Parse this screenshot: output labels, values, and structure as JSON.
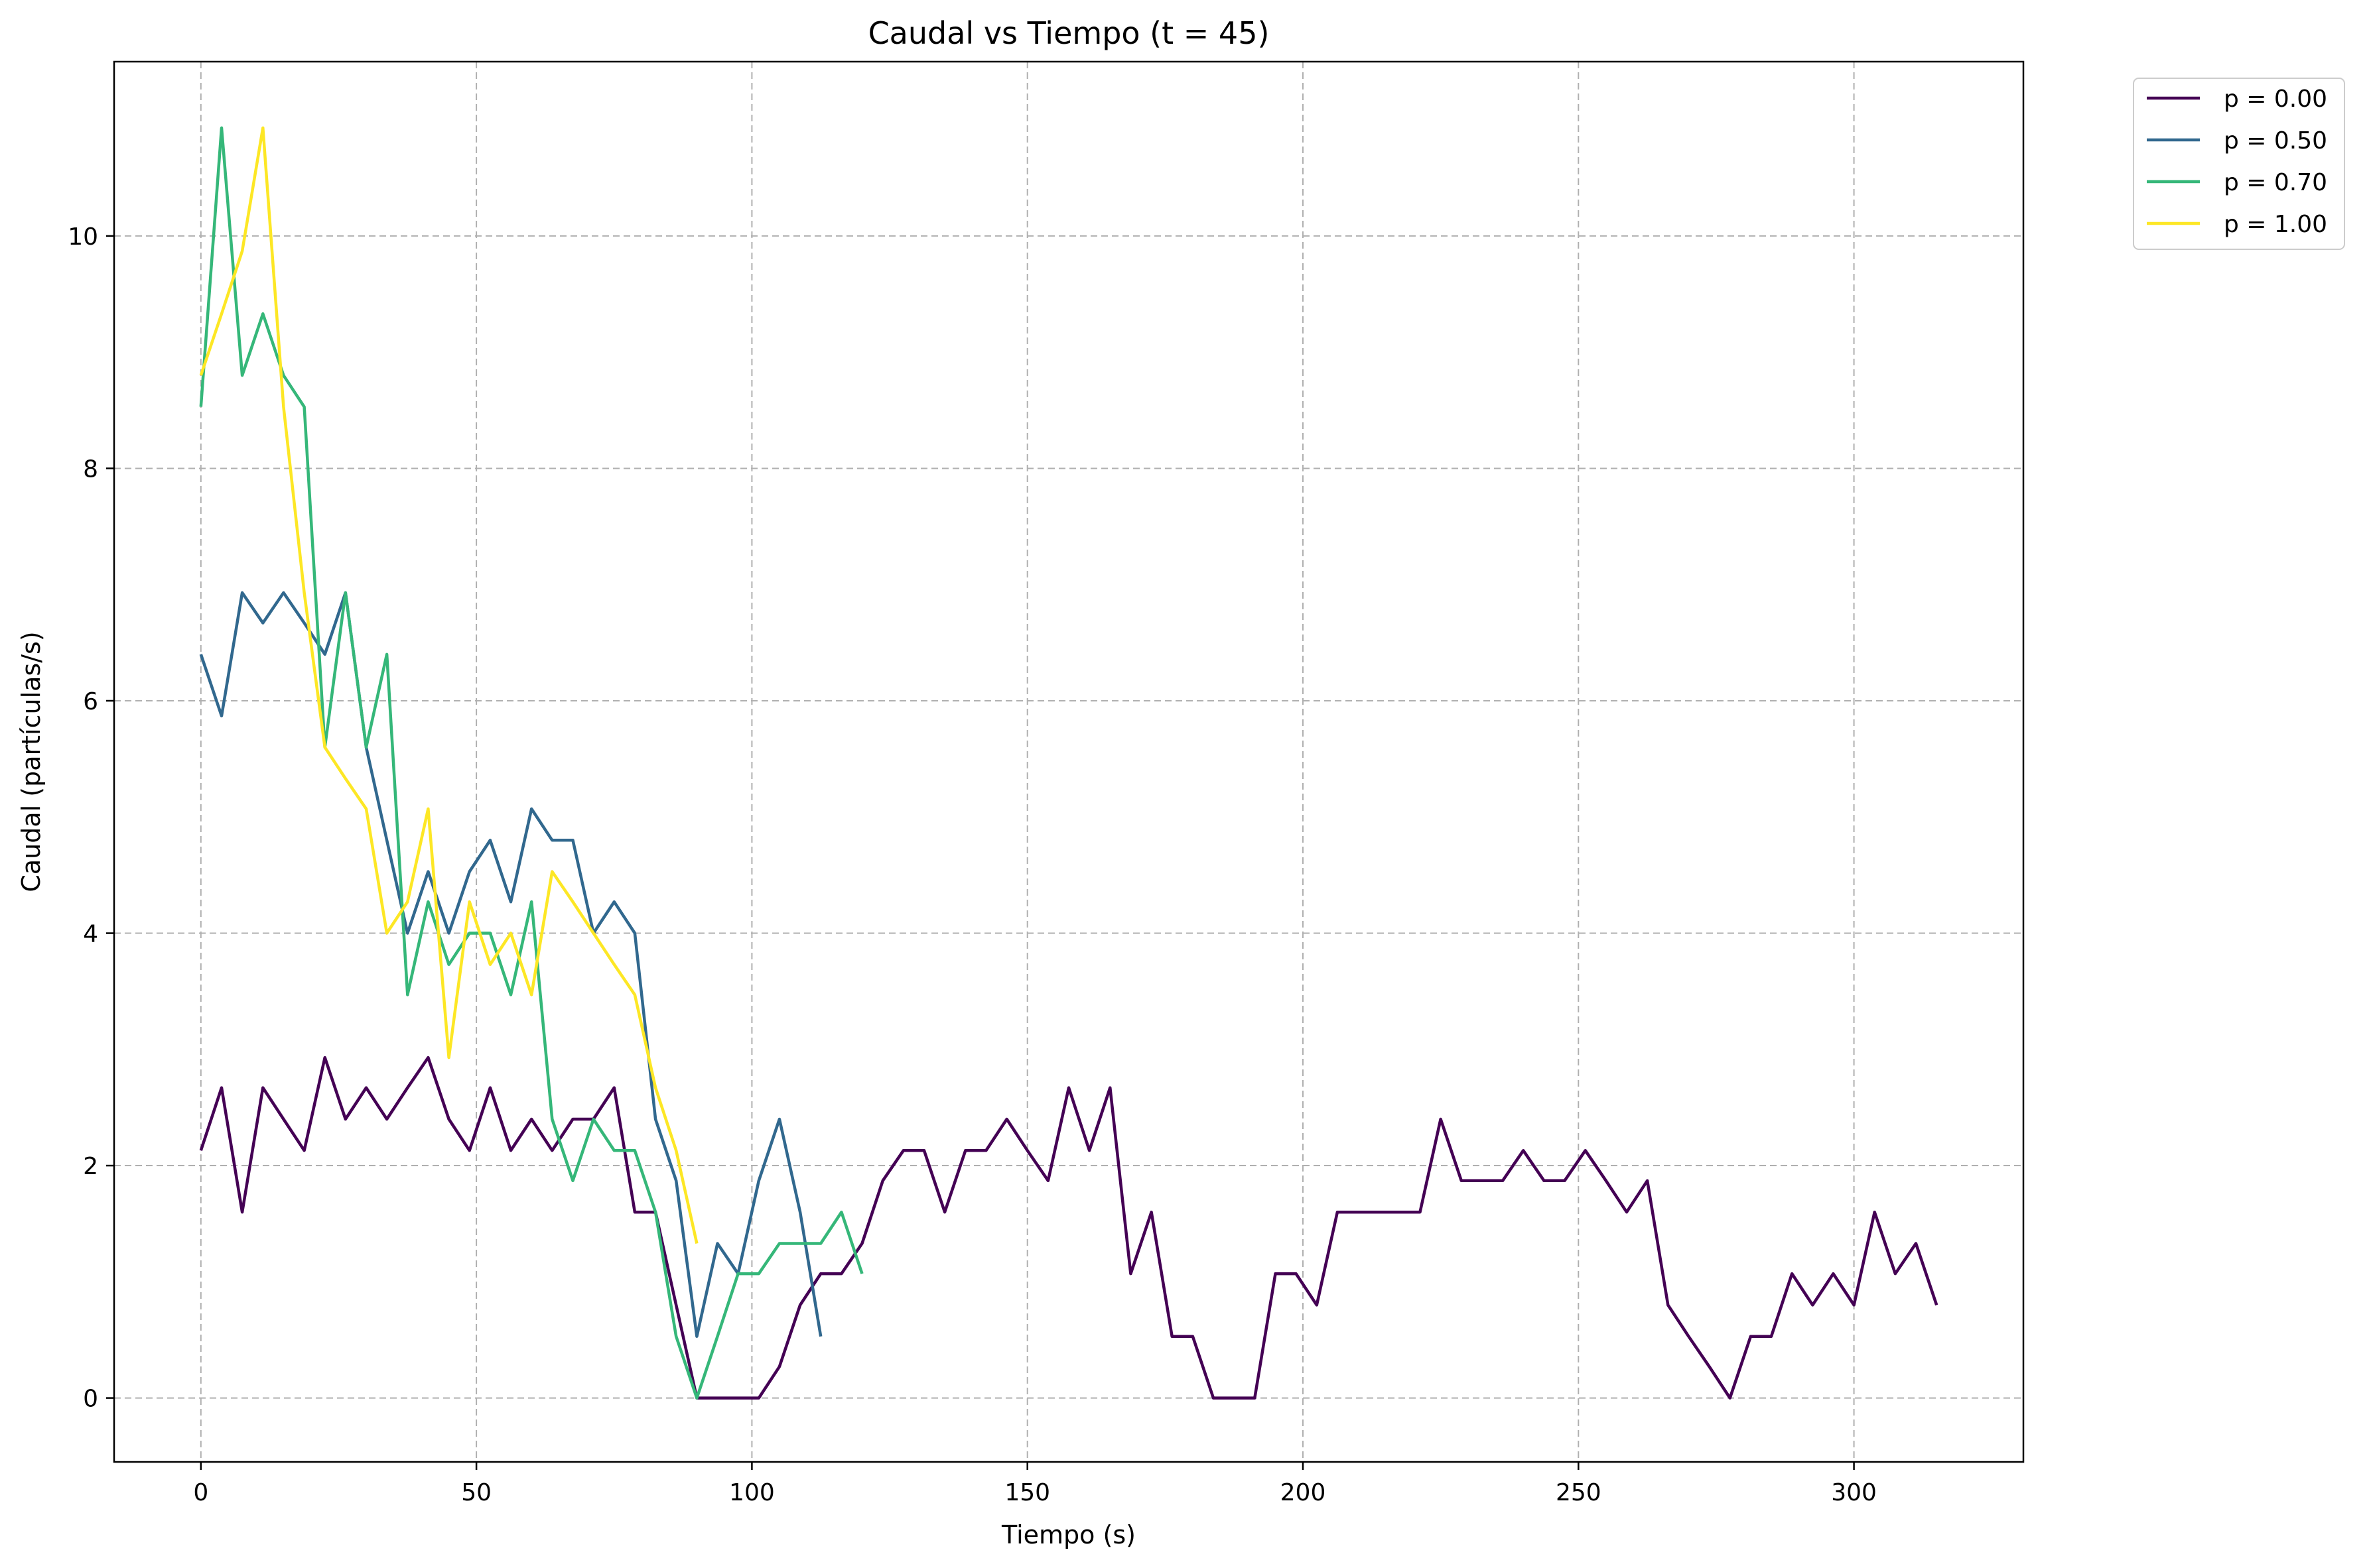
{
  "chart_data": {
    "type": "line",
    "title": "Caudal vs Tiempo (t = 45)",
    "xlabel": "Tiempo (s)",
    "ylabel": "Caudal (partículas/s)",
    "xlim": [
      -15.75,
      330.75
    ],
    "ylim": [
      -0.55,
      11.5
    ],
    "xticks": [
      0,
      50,
      100,
      150,
      200,
      250,
      300
    ],
    "yticks": [
      0,
      2,
      4,
      6,
      8,
      10
    ],
    "grid": true,
    "legend_position": "outside-top-right",
    "series": [
      {
        "name": "p = 0.00",
        "color": "#440154",
        "x": [
          0,
          3.75,
          7.5,
          11.25,
          15,
          18.75,
          22.5,
          26.25,
          30,
          33.75,
          37.5,
          41.25,
          45,
          48.75,
          52.5,
          56.25,
          60,
          63.75,
          67.5,
          71.25,
          75,
          78.75,
          82.5,
          86.25,
          90,
          93.75,
          97.5,
          101.25,
          105,
          108.75,
          112.5,
          116.25,
          120,
          123.75,
          127.5,
          131.25,
          135,
          138.75,
          142.5,
          146.25,
          150,
          153.75,
          157.5,
          161.25,
          165,
          168.75,
          172.5,
          176.25,
          180,
          183.75,
          187.5,
          191.25,
          195,
          198.75,
          202.5,
          206.25,
          210,
          213.75,
          217.5,
          221.25,
          225,
          228.75,
          232.5,
          236.25,
          240,
          243.75,
          247.5,
          251.25,
          255,
          258.75,
          262.5,
          266.25,
          270,
          273.75,
          277.5,
          281.25,
          285,
          288.75,
          292.5,
          296.25,
          300,
          303.75,
          307.5,
          311.25,
          315
        ],
        "y": [
          2.13,
          2.67,
          1.6,
          2.67,
          2.4,
          2.13,
          2.93,
          2.4,
          2.67,
          2.4,
          2.67,
          2.93,
          2.4,
          2.13,
          2.67,
          2.13,
          2.4,
          2.13,
          2.4,
          2.4,
          2.67,
          1.6,
          1.6,
          0.8,
          0.0,
          0.0,
          0.0,
          0.0,
          0.27,
          0.8,
          1.07,
          1.07,
          1.33,
          1.87,
          2.13,
          2.13,
          1.6,
          2.13,
          2.13,
          2.4,
          2.13,
          1.87,
          2.67,
          2.13,
          2.67,
          1.07,
          1.6,
          0.53,
          0.53,
          0.0,
          0.0,
          0.0,
          1.07,
          1.07,
          0.8,
          1.6,
          1.6,
          1.6,
          1.6,
          1.6,
          2.4,
          1.87,
          1.87,
          1.87,
          2.13,
          1.87,
          1.87,
          2.13,
          1.87,
          1.6,
          1.87,
          0.8,
          0.53,
          0.27,
          0.0,
          0.53,
          0.53,
          1.07,
          0.8,
          1.07,
          0.8,
          1.6,
          1.07,
          1.33,
          0.8
        ]
      },
      {
        "name": "p = 0.50",
        "color": "#31688e",
        "x": [
          0,
          3.75,
          7.5,
          11.25,
          15,
          18.75,
          22.5,
          26.25,
          30,
          33.75,
          37.5,
          41.25,
          45,
          48.75,
          52.5,
          56.25,
          60,
          63.75,
          67.5,
          71.25,
          75,
          78.75,
          82.5,
          86.25,
          90,
          93.75,
          97.5,
          101.25,
          105,
          108.75,
          112.5
        ],
        "y": [
          6.4,
          5.87,
          6.93,
          6.67,
          6.93,
          6.67,
          6.4,
          6.93,
          5.6,
          4.8,
          4.0,
          4.53,
          4.0,
          4.53,
          4.8,
          4.27,
          5.07,
          4.8,
          4.8,
          4.0,
          4.27,
          4.0,
          2.4,
          1.87,
          0.53,
          1.33,
          1.07,
          1.87,
          2.4,
          1.6,
          0.53
        ]
      },
      {
        "name": "p = 0.70",
        "color": "#35b779",
        "x": [
          0,
          3.75,
          7.5,
          11.25,
          15,
          18.75,
          22.5,
          26.25,
          30,
          33.75,
          37.5,
          41.25,
          45,
          48.75,
          52.5,
          56.25,
          60,
          63.75,
          67.5,
          71.25,
          75,
          78.75,
          82.5,
          86.25,
          90,
          93.75,
          97.5,
          101.25,
          105,
          108.75,
          112.5,
          116.25,
          120
        ],
        "y": [
          8.53,
          10.93,
          8.8,
          9.33,
          8.8,
          8.53,
          5.6,
          6.93,
          5.6,
          6.4,
          3.47,
          4.27,
          3.73,
          4.0,
          4.0,
          3.47,
          4.27,
          2.4,
          1.87,
          2.4,
          2.13,
          2.13,
          1.6,
          0.53,
          0.0,
          0.53,
          1.07,
          1.07,
          1.33,
          1.33,
          1.33,
          1.6,
          1.07
        ]
      },
      {
        "name": "p = 1.00",
        "color": "#fde725",
        "x": [
          0,
          3.75,
          7.5,
          11.25,
          15,
          18.75,
          22.5,
          26.25,
          30,
          33.75,
          37.5,
          41.25,
          45,
          48.75,
          52.5,
          56.25,
          60,
          63.75,
          67.5,
          71.25,
          75,
          78.75,
          82.5,
          86.25,
          90
        ],
        "y": [
          8.8,
          9.33,
          9.87,
          10.93,
          8.53,
          6.93,
          5.6,
          5.33,
          5.07,
          4.0,
          4.27,
          5.07,
          2.93,
          4.27,
          3.73,
          4.0,
          3.47,
          4.53,
          4.27,
          4.0,
          3.73,
          3.47,
          2.67,
          2.13,
          1.33
        ]
      }
    ]
  }
}
